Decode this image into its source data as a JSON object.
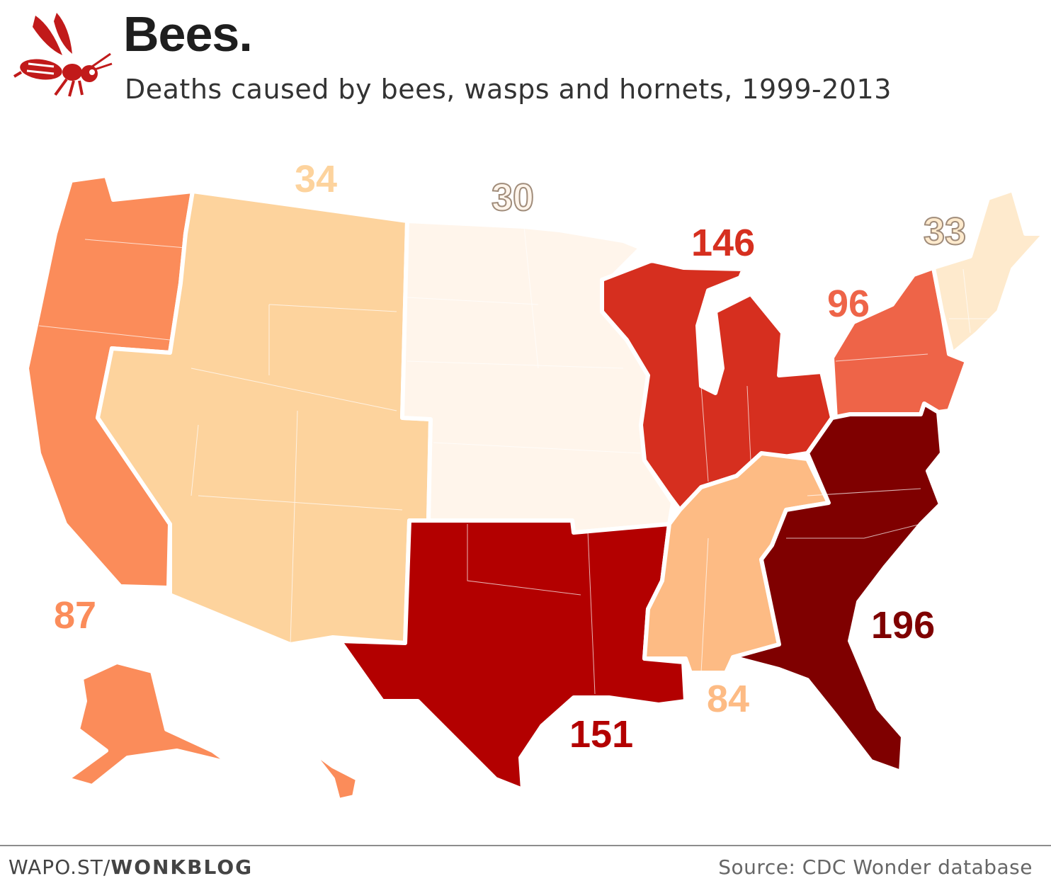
{
  "header": {
    "title": "Bees.",
    "subtitle": "Deaths caused by bees, wasps and hornets, 1999-2013"
  },
  "logo": {
    "icon": "bee-icon",
    "color": "#c11a1a"
  },
  "regions": [
    {
      "id": "west",
      "label": "87",
      "value": 87,
      "color": "#fb8c5a",
      "label_color": "#fb8c5a"
    },
    {
      "id": "mountain",
      "label": "34",
      "value": 34,
      "color": "#fdd39d",
      "label_color": "#fdd39d"
    },
    {
      "id": "plains",
      "label": "30",
      "value": 30,
      "color": "#fff5eb",
      "label_color": "#fff5eb"
    },
    {
      "id": "great-lakes",
      "label": "146",
      "value": 146,
      "color": "#d62f1f",
      "label_color": "#d62f1f"
    },
    {
      "id": "mid-atlantic",
      "label": "96",
      "value": 96,
      "color": "#ee6448",
      "label_color": "#ee6448"
    },
    {
      "id": "new-england",
      "label": "33",
      "value": 33,
      "color": "#feeacd",
      "label_color": "#feeacd"
    },
    {
      "id": "south-central",
      "label": "151",
      "value": 151,
      "color": "#b30000",
      "label_color": "#b30000"
    },
    {
      "id": "east-south-central",
      "label": "84",
      "value": 84,
      "color": "#fdbb84",
      "label_color": "#fdbb84"
    },
    {
      "id": "south-atlantic",
      "label": "196",
      "value": 196,
      "color": "#7f0000",
      "label_color": "#7f0000"
    }
  ],
  "footer": {
    "credit_prefix": "WAPO.ST/",
    "credit_bold": "WONKBLOG",
    "source": "Source: CDC Wonder database"
  }
}
